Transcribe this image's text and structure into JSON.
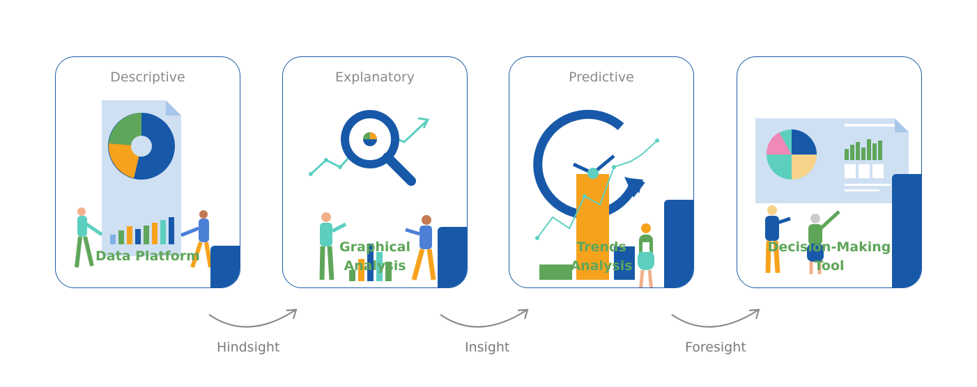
{
  "cards": [
    {
      "stage": "Descriptive",
      "name_line1": "Data Platform",
      "name_line2": ""
    },
    {
      "stage": "Explanatory",
      "name_line1": "Graphical",
      "name_line2": "Analysis"
    },
    {
      "stage": "Predictive",
      "name_line1": "Trends",
      "name_line2": "Analysis"
    },
    {
      "stage": "Decision-Making Tool",
      "name_line1": "Decision-Making",
      "name_line2": "Tool"
    }
  ],
  "transitions": [
    "Hindsight",
    "Insight",
    "Foresight"
  ],
  "colors": {
    "blue": "#1759a8",
    "green": "#5fa65a",
    "orange": "#f7a21d",
    "teal": "#5dcfbf",
    "grey_text": "#8a8a8a"
  }
}
